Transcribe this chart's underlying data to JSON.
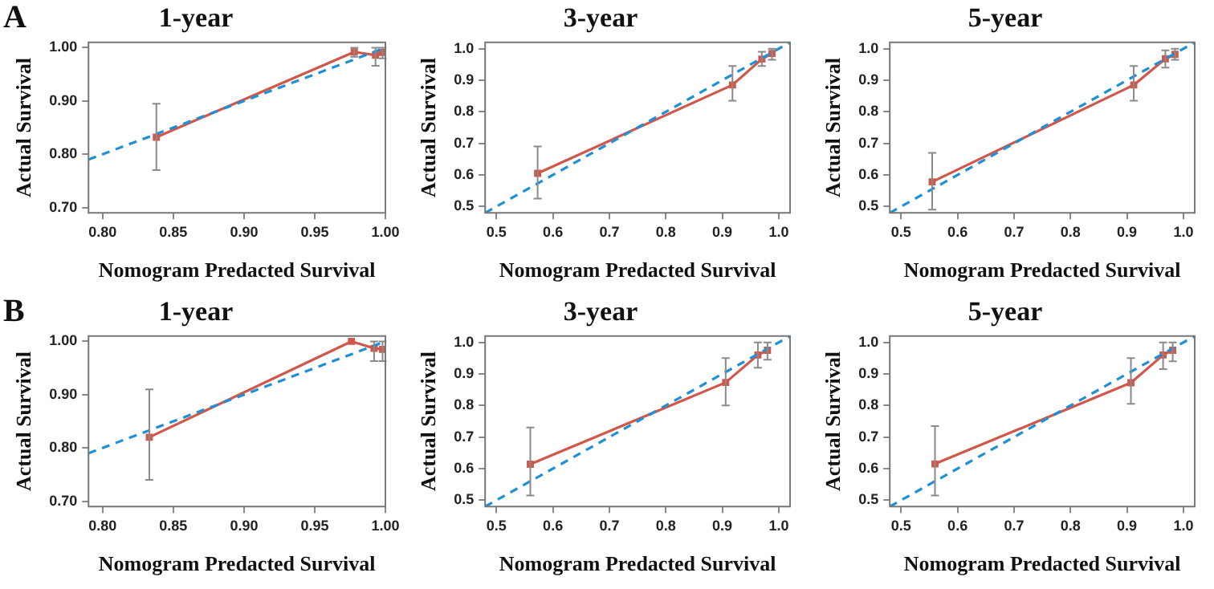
{
  "chart_data": [
    {
      "type": "line",
      "title": "1-year",
      "xlabel": "Nomogram Predacted Survival",
      "ylabel": "Actual Survival",
      "annotations": [
        "A"
      ],
      "marker": "square",
      "grid": false,
      "legend": false,
      "xlim": [
        0.79,
        1.0
      ],
      "ylim": [
        0.69,
        1.01
      ],
      "xticks": [
        {
          "value": 0.8,
          "label": "0.80"
        },
        {
          "value": 0.85,
          "label": "0.85"
        },
        {
          "value": 0.9,
          "label": "0.90"
        },
        {
          "value": 0.95,
          "label": "0.95"
        },
        {
          "value": 1,
          "label": "1.00"
        }
      ],
      "yticks": [
        {
          "value": 0.7,
          "label": "0.70"
        },
        {
          "value": 0.8,
          "label": "0.80"
        },
        {
          "value": 0.9,
          "label": "0.90"
        },
        {
          "value": 1,
          "label": "1.00"
        }
      ],
      "series": [
        {
          "type": "line",
          "color": "#1f8fd6",
          "line_style": "dashed",
          "marker": "none",
          "x": [
            0.79,
            1.0
          ],
          "values": [
            0.79,
            1.0
          ]
        },
        {
          "type": "line",
          "color": "#d0574a",
          "x": [
            0.838,
            0.978,
            0.993,
            0.998
          ],
          "values": [
            0.832,
            0.992,
            0.986,
            0.991
          ],
          "errors": [
            [
              0.77,
              0.895
            ],
            [
              0.983,
              1.0
            ],
            [
              0.966,
              1.0
            ],
            [
              0.98,
              1.0
            ]
          ]
        }
      ]
    },
    {
      "type": "line",
      "title": "3-year",
      "xlabel": "Nomogram Predacted Survival",
      "ylabel": "Actual Survival",
      "marker": "square",
      "grid": false,
      "legend": false,
      "xlim": [
        0.48,
        1.02
      ],
      "ylim": [
        0.48,
        1.02
      ],
      "xticks": [
        0.5,
        0.6,
        0.7,
        0.8,
        0.9,
        {
          "value": 1,
          "label": "1.0"
        }
      ],
      "yticks": [
        0.5,
        0.6,
        0.7,
        0.8,
        0.9,
        {
          "value": 1,
          "label": "1.0"
        }
      ],
      "series": [
        {
          "type": "line",
          "color": "#1f8fd6",
          "line_style": "dashed",
          "marker": "none",
          "x": [
            0.48,
            1.02
          ],
          "values": [
            0.48,
            1.02
          ]
        },
        {
          "type": "line",
          "color": "#d0574a",
          "x": [
            0.573,
            0.918,
            0.97,
            0.988
          ],
          "values": [
            0.605,
            0.885,
            0.967,
            0.985
          ],
          "errors": [
            [
              0.525,
              0.69
            ],
            [
              0.835,
              0.945
            ],
            [
              0.945,
              0.99
            ],
            [
              0.965,
              1.0
            ]
          ]
        }
      ]
    },
    {
      "type": "line",
      "title": "5-year",
      "xlabel": "Nomogram Predacted Survival",
      "ylabel": "Actual Survival",
      "marker": "square",
      "grid": false,
      "legend": false,
      "xlim": [
        0.48,
        1.02
      ],
      "ylim": [
        0.48,
        1.02
      ],
      "xticks": [
        0.5,
        0.6,
        0.7,
        0.8,
        0.9,
        {
          "value": 1,
          "label": "1.0"
        }
      ],
      "yticks": [
        0.5,
        0.6,
        0.7,
        0.8,
        0.9,
        {
          "value": 1,
          "label": "1.0"
        }
      ],
      "series": [
        {
          "type": "line",
          "color": "#1f8fd6",
          "line_style": "dashed",
          "marker": "none",
          "x": [
            0.48,
            1.02
          ],
          "values": [
            0.48,
            1.02
          ]
        },
        {
          "type": "line",
          "color": "#d0574a",
          "x": [
            0.555,
            0.912,
            0.968,
            0.985
          ],
          "values": [
            0.578,
            0.885,
            0.968,
            0.982
          ],
          "errors": [
            [
              0.49,
              0.67
            ],
            [
              0.835,
              0.945
            ],
            [
              0.94,
              0.995
            ],
            [
              0.965,
              1.0
            ]
          ]
        }
      ]
    },
    {
      "type": "line",
      "title": "1-year",
      "xlabel": "Nomogram Predacted Survival",
      "ylabel": "Actual Survival",
      "annotations": [
        "B"
      ],
      "marker": "square",
      "grid": false,
      "legend": false,
      "xlim": [
        0.79,
        1.0
      ],
      "ylim": [
        0.69,
        1.01
      ],
      "xticks": [
        {
          "value": 0.8,
          "label": "0.80"
        },
        {
          "value": 0.85,
          "label": "0.85"
        },
        {
          "value": 0.9,
          "label": "0.90"
        },
        {
          "value": 0.95,
          "label": "0.95"
        },
        {
          "value": 1,
          "label": "1.00"
        }
      ],
      "yticks": [
        {
          "value": 0.7,
          "label": "0.70"
        },
        {
          "value": 0.8,
          "label": "0.80"
        },
        {
          "value": 0.9,
          "label": "0.90"
        },
        {
          "value": 1,
          "label": "1.00"
        }
      ],
      "series": [
        {
          "type": "line",
          "color": "#1f8fd6",
          "line_style": "dashed",
          "marker": "none",
          "x": [
            0.79,
            1.0
          ],
          "values": [
            0.79,
            1.0
          ]
        },
        {
          "type": "line",
          "color": "#d0574a",
          "x": [
            0.833,
            0.976,
            0.992,
            0.998
          ],
          "values": [
            0.82,
            1.0,
            0.987,
            0.985
          ],
          "errors": [
            [
              0.74,
              0.91
            ],
            null,
            [
              0.963,
              1.0
            ],
            [
              0.963,
              1.0
            ]
          ]
        }
      ]
    },
    {
      "type": "line",
      "title": "3-year",
      "xlabel": "Nomogram Predacted Survival",
      "ylabel": "Actual Survival",
      "marker": "square",
      "grid": false,
      "legend": false,
      "xlim": [
        0.48,
        1.02
      ],
      "ylim": [
        0.48,
        1.02
      ],
      "xticks": [
        0.5,
        0.6,
        0.7,
        0.8,
        0.9,
        {
          "value": 1,
          "label": "1.0"
        }
      ],
      "yticks": [
        0.5,
        0.6,
        0.7,
        0.8,
        0.9,
        {
          "value": 1,
          "label": "1.0"
        }
      ],
      "series": [
        {
          "type": "line",
          "color": "#1f8fd6",
          "line_style": "dashed",
          "marker": "none",
          "x": [
            0.48,
            1.02
          ],
          "values": [
            0.48,
            1.02
          ]
        },
        {
          "type": "line",
          "color": "#d0574a",
          "x": [
            0.56,
            0.906,
            0.963,
            0.98
          ],
          "values": [
            0.614,
            0.873,
            0.96,
            0.975
          ],
          "errors": [
            [
              0.515,
              0.73
            ],
            [
              0.8,
              0.95
            ],
            [
              0.92,
              1.0
            ],
            [
              0.945,
              1.0
            ]
          ]
        }
      ]
    },
    {
      "type": "line",
      "title": "5-year",
      "xlabel": "Nomogram Predacted Survival",
      "ylabel": "Actual Survival",
      "marker": "square",
      "grid": false,
      "legend": false,
      "xlim": [
        0.48,
        1.02
      ],
      "ylim": [
        0.48,
        1.02
      ],
      "xticks": [
        0.5,
        0.6,
        0.7,
        0.8,
        0.9,
        {
          "value": 1,
          "label": "1.0"
        }
      ],
      "yticks": [
        0.5,
        0.6,
        0.7,
        0.8,
        0.9,
        {
          "value": 1,
          "label": "1.0"
        }
      ],
      "series": [
        {
          "type": "line",
          "color": "#1f8fd6",
          "line_style": "dashed",
          "marker": "none",
          "x": [
            0.48,
            1.02
          ],
          "values": [
            0.48,
            1.02
          ]
        },
        {
          "type": "line",
          "color": "#d0574a",
          "x": [
            0.56,
            0.907,
            0.964,
            0.981
          ],
          "values": [
            0.615,
            0.872,
            0.96,
            0.975
          ],
          "errors": [
            [
              0.515,
              0.735
            ],
            [
              0.805,
              0.95
            ],
            [
              0.915,
              1.0
            ],
            [
              0.94,
              1.0
            ]
          ]
        }
      ]
    }
  ]
}
